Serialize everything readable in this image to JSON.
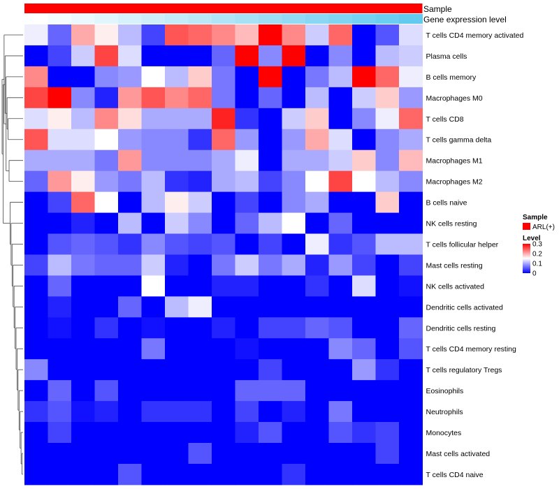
{
  "chart_data": {
    "type": "heatmap",
    "annotations": [
      {
        "name": "Sample",
        "label": "Sample",
        "color": "#ff0000",
        "legend_entry": "ARL(+)"
      },
      {
        "name": "Gene expression level",
        "label": "Gene expression level",
        "gradient": [
          "#ffffff",
          "#5bc8ee"
        ]
      }
    ],
    "rows": [
      "T cells CD4 memory activated",
      "Plasma cells",
      "B cells memory",
      "Macrophages M0",
      "T cells CD8",
      "T cells gamma delta",
      "Macrophages M1",
      "Macrophages M2",
      "B cells naive",
      "NK cells resting",
      "T cells follicular helper",
      "Mast cells resting",
      "NK cells activated",
      "Dendritic cells activated",
      "Dendritic cells resting",
      "T cells CD4 memory resting",
      "T cells regulatory  Tregs",
      "Eosinophils",
      "Neutrophils",
      "Monocytes",
      "Mast cells activated",
      "T cells CD4 naive"
    ],
    "n_columns": 17,
    "values": [
      [
        0.14,
        0.06,
        0.2,
        0.16,
        0.11,
        0.04,
        0.25,
        0.24,
        0.22,
        0.19,
        0.3,
        0.22,
        0.12,
        0.24,
        0.0,
        0.05,
        0.13
      ],
      [
        0.0,
        0.04,
        0.12,
        0.26,
        0.13,
        0.0,
        0.0,
        0.0,
        0.06,
        0.3,
        0.08,
        0.3,
        0.0,
        0.08,
        0.0,
        0.11,
        0.12
      ],
      [
        0.22,
        0.0,
        0.0,
        0.08,
        0.09,
        0.15,
        0.11,
        0.18,
        0.07,
        0.0,
        0.3,
        0.0,
        0.07,
        0.11,
        0.3,
        0.24,
        0.14
      ],
      [
        0.26,
        0.3,
        0.08,
        0.02,
        0.21,
        0.25,
        0.22,
        0.24,
        0.07,
        0.0,
        0.06,
        0.0,
        0.11,
        0.0,
        0.12,
        0.18,
        0.09
      ],
      [
        0.13,
        0.16,
        0.11,
        0.22,
        0.17,
        0.1,
        0.1,
        0.1,
        0.28,
        0.03,
        0.0,
        0.12,
        0.18,
        0.0,
        0.08,
        0.14,
        0.24
      ],
      [
        0.25,
        0.13,
        0.13,
        0.15,
        0.09,
        0.08,
        0.08,
        0.03,
        0.24,
        0.09,
        0.0,
        0.09,
        0.2,
        0.13,
        0.0,
        0.08,
        0.1
      ],
      [
        0.1,
        0.1,
        0.1,
        0.07,
        0.21,
        0.08,
        0.08,
        0.08,
        0.1,
        0.14,
        0.0,
        0.1,
        0.1,
        0.12,
        0.18,
        0.08,
        0.19
      ],
      [
        0.06,
        0.21,
        0.16,
        0.09,
        0.07,
        0.11,
        0.03,
        0.02,
        0.1,
        0.11,
        0.04,
        0.08,
        0.15,
        0.26,
        0.15,
        0.11,
        0.08
      ],
      [
        0.0,
        0.04,
        0.24,
        0.15,
        0.0,
        0.11,
        0.16,
        0.12,
        0.0,
        0.04,
        0.0,
        0.08,
        0.1,
        0.0,
        0.0,
        0.18,
        0.0
      ],
      [
        0.0,
        0.0,
        0.02,
        0.0,
        0.11,
        0.0,
        0.12,
        0.08,
        0.0,
        0.06,
        0.11,
        0.15,
        0.0,
        0.06,
        0.0,
        0.0,
        0.0
      ],
      [
        0.0,
        0.05,
        0.06,
        0.05,
        0.03,
        0.08,
        0.05,
        0.04,
        0.05,
        0.0,
        0.04,
        0.0,
        0.14,
        0.03,
        0.05,
        0.11,
        0.11
      ],
      [
        0.04,
        0.11,
        0.07,
        0.06,
        0.06,
        0.12,
        0.02,
        0.0,
        0.07,
        0.12,
        0.07,
        0.1,
        0.02,
        0.09,
        0.04,
        0.0,
        0.04
      ],
      [
        0.0,
        0.06,
        0.0,
        0.0,
        0.0,
        0.15,
        0.0,
        0.0,
        0.02,
        0.02,
        0.0,
        0.0,
        0.03,
        0.0,
        0.13,
        0.0,
        0.01
      ],
      [
        0.0,
        0.02,
        0.0,
        0.0,
        0.06,
        0.0,
        0.11,
        0.14,
        0.0,
        0.0,
        0.0,
        0.0,
        0.0,
        0.0,
        0.0,
        0.0,
        0.0
      ],
      [
        0.0,
        0.01,
        0.0,
        0.03,
        0.0,
        0.01,
        0.0,
        0.0,
        0.02,
        0.0,
        0.04,
        0.04,
        0.06,
        0.05,
        0.0,
        0.0,
        0.06
      ],
      [
        0.0,
        0.0,
        0.0,
        0.0,
        0.0,
        0.07,
        0.0,
        0.0,
        0.0,
        0.01,
        0.0,
        0.0,
        0.0,
        0.08,
        0.06,
        0.0,
        0.05
      ],
      [
        0.08,
        0.0,
        0.0,
        0.0,
        0.0,
        0.0,
        0.0,
        0.0,
        0.0,
        0.0,
        0.04,
        0.0,
        0.0,
        0.0,
        0.09,
        0.03,
        0.0
      ],
      [
        0.0,
        0.06,
        0.0,
        0.05,
        0.0,
        0.0,
        0.0,
        0.0,
        0.0,
        0.06,
        0.06,
        0.06,
        0.0,
        0.0,
        0.0,
        0.0,
        0.0
      ],
      [
        0.03,
        0.05,
        0.01,
        0.02,
        0.0,
        0.03,
        0.03,
        0.03,
        0.0,
        0.04,
        0.0,
        0.02,
        0.0,
        0.07,
        0.0,
        0.0,
        0.0
      ],
      [
        0.0,
        0.04,
        0.0,
        0.0,
        0.0,
        0.0,
        0.0,
        0.0,
        0.0,
        0.02,
        0.05,
        0.0,
        0.0,
        0.05,
        0.03,
        0.04,
        0.0
      ],
      [
        0.0,
        0.0,
        0.0,
        0.0,
        0.0,
        0.0,
        0.0,
        0.05,
        0.0,
        0.0,
        0.0,
        0.0,
        0.0,
        0.0,
        0.0,
        0.04,
        0.0
      ],
      [
        0.0,
        0.0,
        0.0,
        0.0,
        0.05,
        0.0,
        0.0,
        0.0,
        0.0,
        0.0,
        0.0,
        0.03,
        0.0,
        0.0,
        0.0,
        0.0,
        0.0
      ]
    ],
    "gene_expression_level": [
      0.0,
      0.06,
      0.12,
      0.18,
      0.24,
      0.3,
      0.36,
      0.42,
      0.48,
      0.54,
      0.6,
      0.66,
      0.72,
      0.78,
      0.84,
      0.9,
      0.96
    ],
    "color_scale": {
      "min": 0,
      "max": 0.3,
      "low": "#0000ff",
      "mid": "#ffffff",
      "high": "#ff0000"
    },
    "legend": {
      "sample_title": "Sample",
      "sample_entry": "ARL(+)",
      "level_title": "Level",
      "ticks": [
        "0.3",
        "0.2",
        "0.1",
        "0"
      ],
      "tick_values": [
        0.3,
        0.2,
        0.1,
        0
      ]
    },
    "dendrogram_merges": [
      [
        21,
        20
      ],
      [
        -1,
        19
      ],
      [
        -2,
        18
      ],
      [
        -3,
        17
      ],
      [
        -4,
        16
      ],
      [
        -5,
        15
      ],
      [
        -6,
        14
      ],
      [
        -7,
        13
      ],
      [
        -8,
        12
      ],
      [
        -9,
        11
      ],
      [
        -10,
        10
      ],
      [
        -11,
        9
      ],
      [
        -12,
        8
      ],
      [
        6,
        7
      ],
      [
        4,
        5
      ],
      [
        -15,
        3
      ],
      [
        2,
        -14
      ],
      [
        1,
        -16
      ],
      [
        0,
        -17
      ],
      [
        -13,
        -18
      ],
      [
        -19,
        -20
      ]
    ]
  }
}
